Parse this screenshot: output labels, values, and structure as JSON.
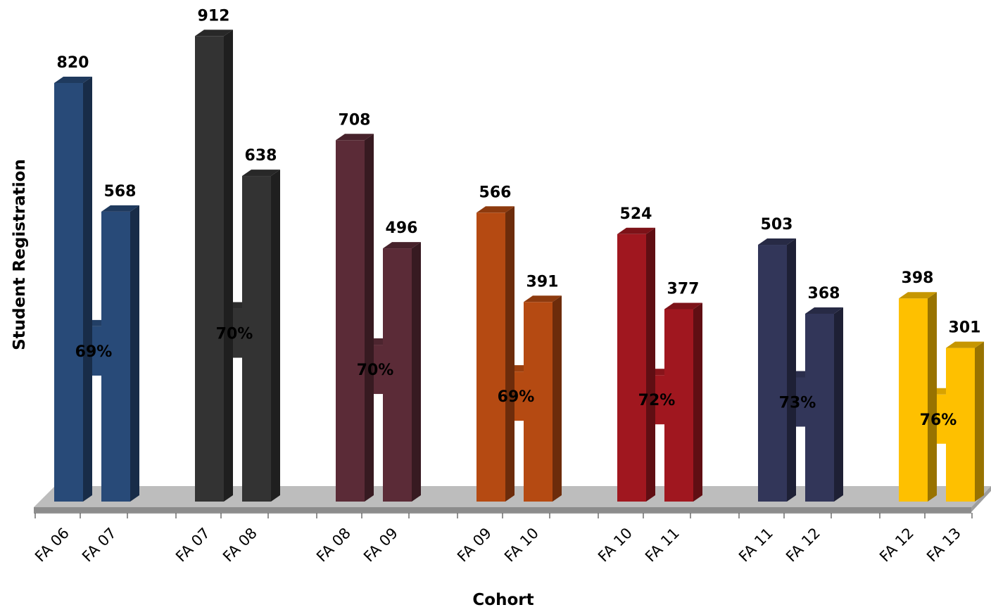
{
  "chart_data": {
    "type": "bar",
    "title": "",
    "xlabel": "Cohort",
    "ylabel": "Student Registration",
    "ylim": [
      0,
      1000
    ],
    "grid": false,
    "legend": "none",
    "style": "3d-column",
    "groups": [
      {
        "x": [
          "FA 06",
          "FA 07"
        ],
        "values": [
          820,
          568
        ],
        "percent": "69%",
        "color": "#284a78"
      },
      {
        "x": [
          "FA 07",
          "FA 08"
        ],
        "values": [
          912,
          638
        ],
        "percent": "70%",
        "color": "#333333"
      },
      {
        "x": [
          "FA 08",
          "FA 09"
        ],
        "values": [
          708,
          496
        ],
        "percent": "70%",
        "color": "#5b2b37"
      },
      {
        "x": [
          "FA 09",
          "FA 10"
        ],
        "values": [
          566,
          391
        ],
        "percent": "69%",
        "color": "#b54a12"
      },
      {
        "x": [
          "FA 10",
          "FA 11"
        ],
        "values": [
          524,
          377
        ],
        "percent": "72%",
        "color": "#a0171f"
      },
      {
        "x": [
          "FA 11",
          "FA 12"
        ],
        "values": [
          503,
          368
        ],
        "percent": "73%",
        "color": "#323659"
      },
      {
        "x": [
          "FA 12",
          "FA 13"
        ],
        "values": [
          398,
          301
        ],
        "percent": "76%",
        "color": "#fec000"
      }
    ]
  }
}
